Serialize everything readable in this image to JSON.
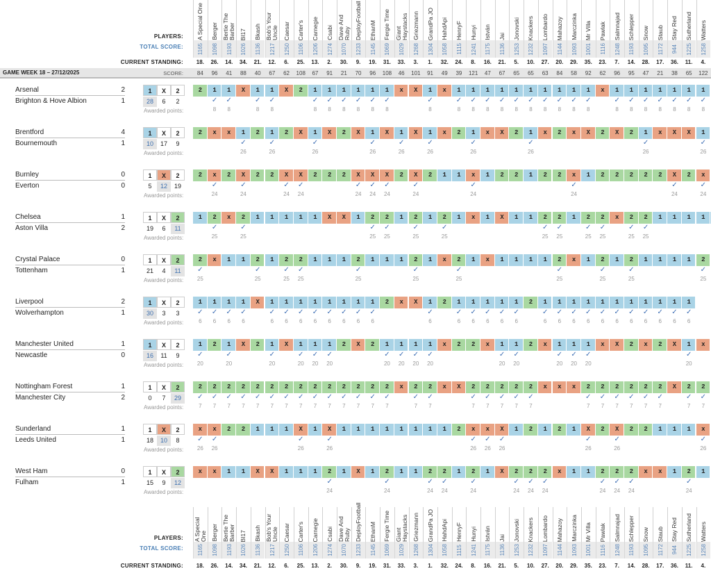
{
  "labels": {
    "players": "PLAYERS:",
    "total_score": "TOTAL SCORE:",
    "current_standing": "CURRENT STANDING:",
    "score": "SCORE:",
    "awarded": "Awarded points:",
    "game_week": "GAME WEEK 18 – 27/12/2025",
    "check": "✓"
  },
  "players": [
    {
      "name": "A Special One",
      "total": "1165",
      "standing": "18.",
      "score": "84"
    },
    {
      "name": "Berger",
      "total": "1098",
      "standing": "26.",
      "score": "96"
    },
    {
      "name": "Bertie The Barber",
      "total": "1193",
      "standing": "14.",
      "score": "41"
    },
    {
      "name": "BI17",
      "total": "1026",
      "standing": "34.",
      "score": "88"
    },
    {
      "name": "Bkash",
      "total": "1136",
      "standing": "21.",
      "score": "40"
    },
    {
      "name": "Bob's Your Uncle",
      "total": "1217",
      "standing": "12.",
      "score": "67"
    },
    {
      "name": "Caesar",
      "total": "1250",
      "standing": "6.",
      "score": "62"
    },
    {
      "name": "Carter's",
      "total": "1106",
      "standing": "25.",
      "score": "108"
    },
    {
      "name": "Carnegie",
      "total": "1206",
      "standing": "13.",
      "score": "67"
    },
    {
      "name": "Csabi",
      "total": "1274",
      "standing": "2.",
      "score": "91"
    },
    {
      "name": "Dave And Ruby",
      "total": "1070",
      "standing": "30.",
      "score": "21"
    },
    {
      "name": "DeployFootball",
      "total": "1233",
      "standing": "9.",
      "score": "70"
    },
    {
      "name": "EthanM",
      "total": "1145",
      "standing": "19.",
      "score": "96"
    },
    {
      "name": "Fergie Time",
      "total": "1069",
      "standing": "31.",
      "score": "108"
    },
    {
      "name": "Giant Haystacks",
      "total": "1029",
      "standing": "33.",
      "score": "46"
    },
    {
      "name": "Griezmann",
      "total": "1268",
      "standing": "3.",
      "score": "101"
    },
    {
      "name": "GrandPa JO",
      "total": "1304",
      "standing": "1.",
      "score": "91"
    },
    {
      "name": "HahdApi",
      "total": "1058",
      "standing": "32.",
      "score": "49"
    },
    {
      "name": "HenryF",
      "total": "1115",
      "standing": "24.",
      "score": "39"
    },
    {
      "name": "Hunyi",
      "total": "1241",
      "standing": "8.",
      "score": "121"
    },
    {
      "name": "István",
      "total": "1175",
      "standing": "16.",
      "score": "47"
    },
    {
      "name": "Jai",
      "total": "1136",
      "standing": "21.",
      "score": "67"
    },
    {
      "name": "Jonovski",
      "total": "1253",
      "standing": "5.",
      "score": "65"
    },
    {
      "name": "Knackers",
      "total": "1232",
      "standing": "10.",
      "score": "65"
    },
    {
      "name": "Lombardo",
      "total": "1097",
      "standing": "27.",
      "score": "63"
    },
    {
      "name": "Mahazoy",
      "total": "1144",
      "standing": "20.",
      "score": "84"
    },
    {
      "name": "Marczinka",
      "total": "1093",
      "standing": "29.",
      "score": "58"
    },
    {
      "name": "Mr Villa",
      "total": "1001",
      "standing": "35.",
      "score": "92"
    },
    {
      "name": "Pawlak",
      "total": "1116",
      "standing": "23.",
      "score": "62"
    },
    {
      "name": "Salmnajad",
      "total": "1248",
      "standing": "7.",
      "score": "96"
    },
    {
      "name": "Schlepper",
      "total": "1193",
      "standing": "14.",
      "score": "95"
    },
    {
      "name": "Snow",
      "total": "1095",
      "standing": "28.",
      "score": "47"
    },
    {
      "name": "Staub",
      "total": "1172",
      "standing": "17.",
      "score": "21"
    },
    {
      "name": "Stay Red",
      "total": "944",
      "standing": "36.",
      "score": "38"
    },
    {
      "name": "Sutherland",
      "total": "1225",
      "standing": "11.",
      "score": "65"
    },
    {
      "name": "Watters",
      "total": "1258",
      "standing": "4.",
      "score": "122"
    }
  ],
  "matches": [
    {
      "home": "Arsenal",
      "away": "Brighton & Hove Albion",
      "hg": "2",
      "ag": "1",
      "result": "1",
      "dist": [
        "28",
        "6",
        "2"
      ],
      "points": "8",
      "picks": "211X11X2111111xX1x1111111111x1111111"
    },
    {
      "home": "Brentford",
      "away": "Bournemouth",
      "hg": "4",
      "ag": "1",
      "result": "1",
      "dist": [
        "10",
        "17",
        "9"
      ],
      "points": "26",
      "picks": "2xx1212X1X2X1X1X1x21xX21x2xX2X21xXX1"
    },
    {
      "home": "Burnley",
      "away": "Everton",
      "hg": "0",
      "ag": "0",
      "result": "X",
      "dist": [
        "5",
        "12",
        "19"
      ],
      "points": "24",
      "picks": "2x2X22XX222XXX2X211x122122x122222X2x"
    },
    {
      "home": "Chelsea",
      "away": "Aston Villa",
      "hg": "1",
      "ag": "2",
      "result": "2",
      "dist": [
        "19",
        "6",
        "11"
      ],
      "points": "25",
      "picks": "12x211111XX12212121x1X1122122x2211111"
    },
    {
      "home": "Crystal Palace",
      "away": "Tottenham",
      "hg": "0",
      "ag": "1",
      "result": "2",
      "dist": [
        "21",
        "4",
        "11"
      ],
      "points": "25",
      "picks": "2x112122111211121x21x11112x121211112"
    },
    {
      "home": "Liverpool",
      "away": "Wolverhampton",
      "hg": "2",
      "ag": "1",
      "result": "1",
      "dist": [
        "30",
        "3",
        "3"
      ],
      "points": "6",
      "picks": "1111X111111112xX1211111211111111111"
    },
    {
      "home": "Manchester United",
      "away": "Newcastle",
      "hg": "1",
      "ag": "0",
      "result": "1",
      "dist": [
        "16",
        "11",
        "9"
      ],
      "points": "20",
      "picks": "121X21X1112X21111x22x112x111xX2x2X1x"
    },
    {
      "home": "Nottingham Forest",
      "away": "Manchester City",
      "hg": "1",
      "ag": "2",
      "result": "2",
      "dist": [
        "0",
        "7",
        "29"
      ],
      "points": "7",
      "picks": "22222222222222x22xX22222xxx222222X22"
    },
    {
      "home": "Sunderland",
      "away": "Leeds United",
      "hg": "1",
      "ag": "1",
      "result": "X",
      "dist": [
        "18",
        "10",
        "8"
      ],
      "points": "26",
      "picks": "xx22111X1X111111112xxX12121X2X22111x"
    },
    {
      "home": "West Ham",
      "away": "Fulham",
      "hg": "0",
      "ag": "1",
      "result": "2",
      "dist": [
        "15",
        "9",
        "12"
      ],
      "points": "24",
      "picks": "xx11XX11121X121122121X222x11222xx121"
    }
  ],
  "colors": {
    "pick_1": "#a9d3e6",
    "pick_X": "#e9a283",
    "pick_2": "#a9d8a1",
    "check": "#3d6eb4",
    "total": "#5a86b8"
  }
}
